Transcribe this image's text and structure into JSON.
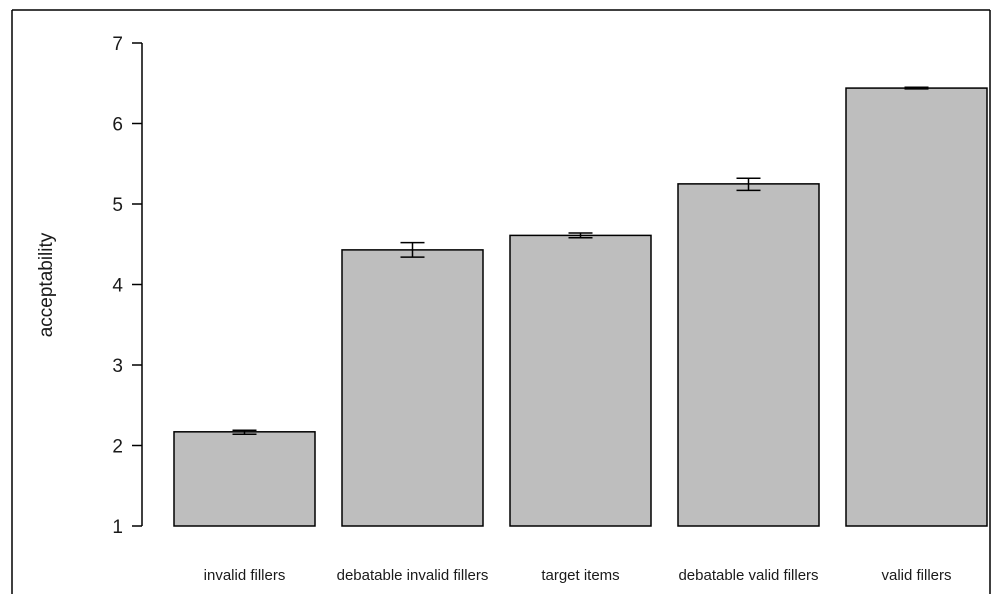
{
  "chart_data": {
    "type": "bar",
    "title": "",
    "xlabel": "",
    "ylabel": "acceptability",
    "ylim": [
      1,
      7
    ],
    "yticks": [
      1,
      2,
      3,
      4,
      5,
      6,
      7
    ],
    "grid": false,
    "categories": [
      "invalid fillers",
      "debatable invalid fillers",
      "target items",
      "debatable valid fillers",
      "valid fillers"
    ],
    "values": [
      2.17,
      4.43,
      4.61,
      5.25,
      6.44
    ],
    "error_bars": [
      {
        "low": 2.14,
        "high": 2.19
      },
      {
        "low": 4.34,
        "high": 4.52
      },
      {
        "low": 4.58,
        "high": 4.64
      },
      {
        "low": 5.17,
        "high": 5.32
      },
      {
        "low": 6.43,
        "high": 6.45
      }
    ],
    "colors": {
      "bar_fill": "#bebebe",
      "bar_stroke": "#000000",
      "axis": "#000000",
      "frame": "#000000"
    }
  }
}
